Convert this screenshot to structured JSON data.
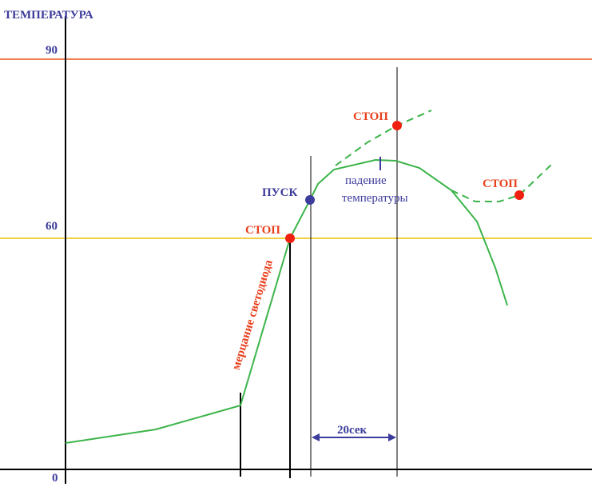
{
  "axis": {
    "title": "ТЕМПЕРАТУРА",
    "ticks": [
      "90",
      "60",
      "0"
    ]
  },
  "labels": {
    "stop_1": "СТОП",
    "start": "ПУСК",
    "stop_2": "СТОП",
    "stop_3": "СТОП",
    "drop_line_1": "падение",
    "drop_line_2": "температуры",
    "flicker": "мерцание светодиода",
    "interval": "20сек"
  }
}
